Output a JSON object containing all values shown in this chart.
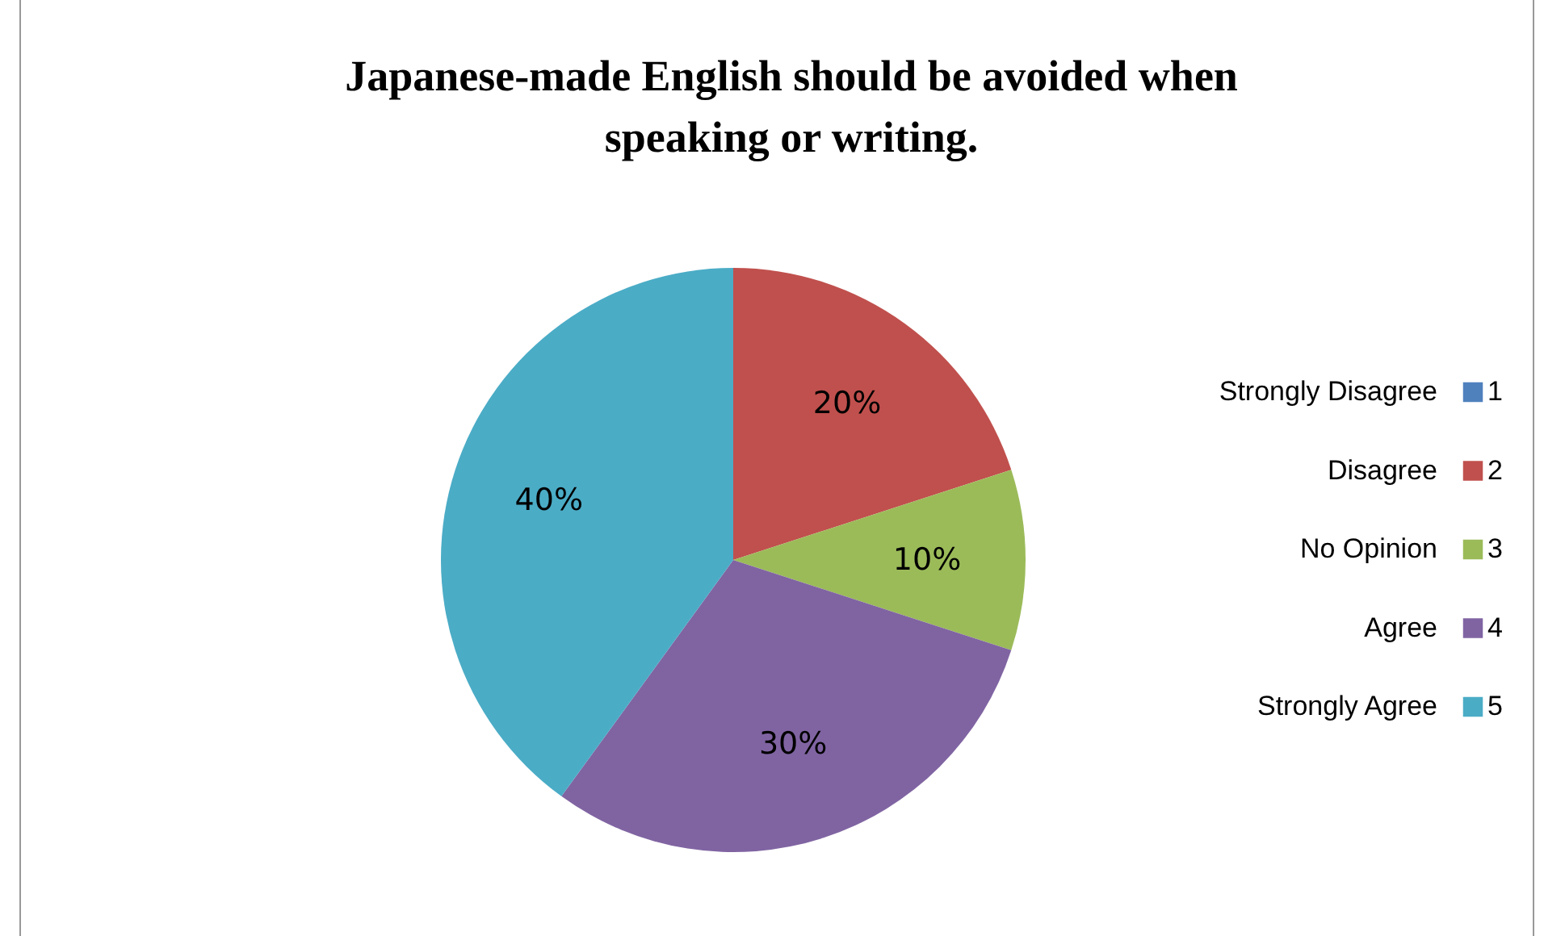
{
  "chart_data": {
    "type": "pie",
    "title": "Japanese-made English should be avoided when speaking or writing.",
    "categories": [
      "1",
      "2",
      "3",
      "4",
      "5"
    ],
    "values": [
      0,
      20,
      10,
      30,
      40
    ],
    "colors": [
      "#4f81bd",
      "#c0504d",
      "#9bbb59",
      "#8064a2",
      "#4bacc6"
    ],
    "value_labels": [
      null,
      "20%",
      "10%",
      "30%",
      "40%"
    ],
    "annotations": [
      "Strongly Disagree",
      "Disagree",
      "No Opinion",
      "Agree",
      "Strongly Agree"
    ],
    "legend": "right"
  }
}
